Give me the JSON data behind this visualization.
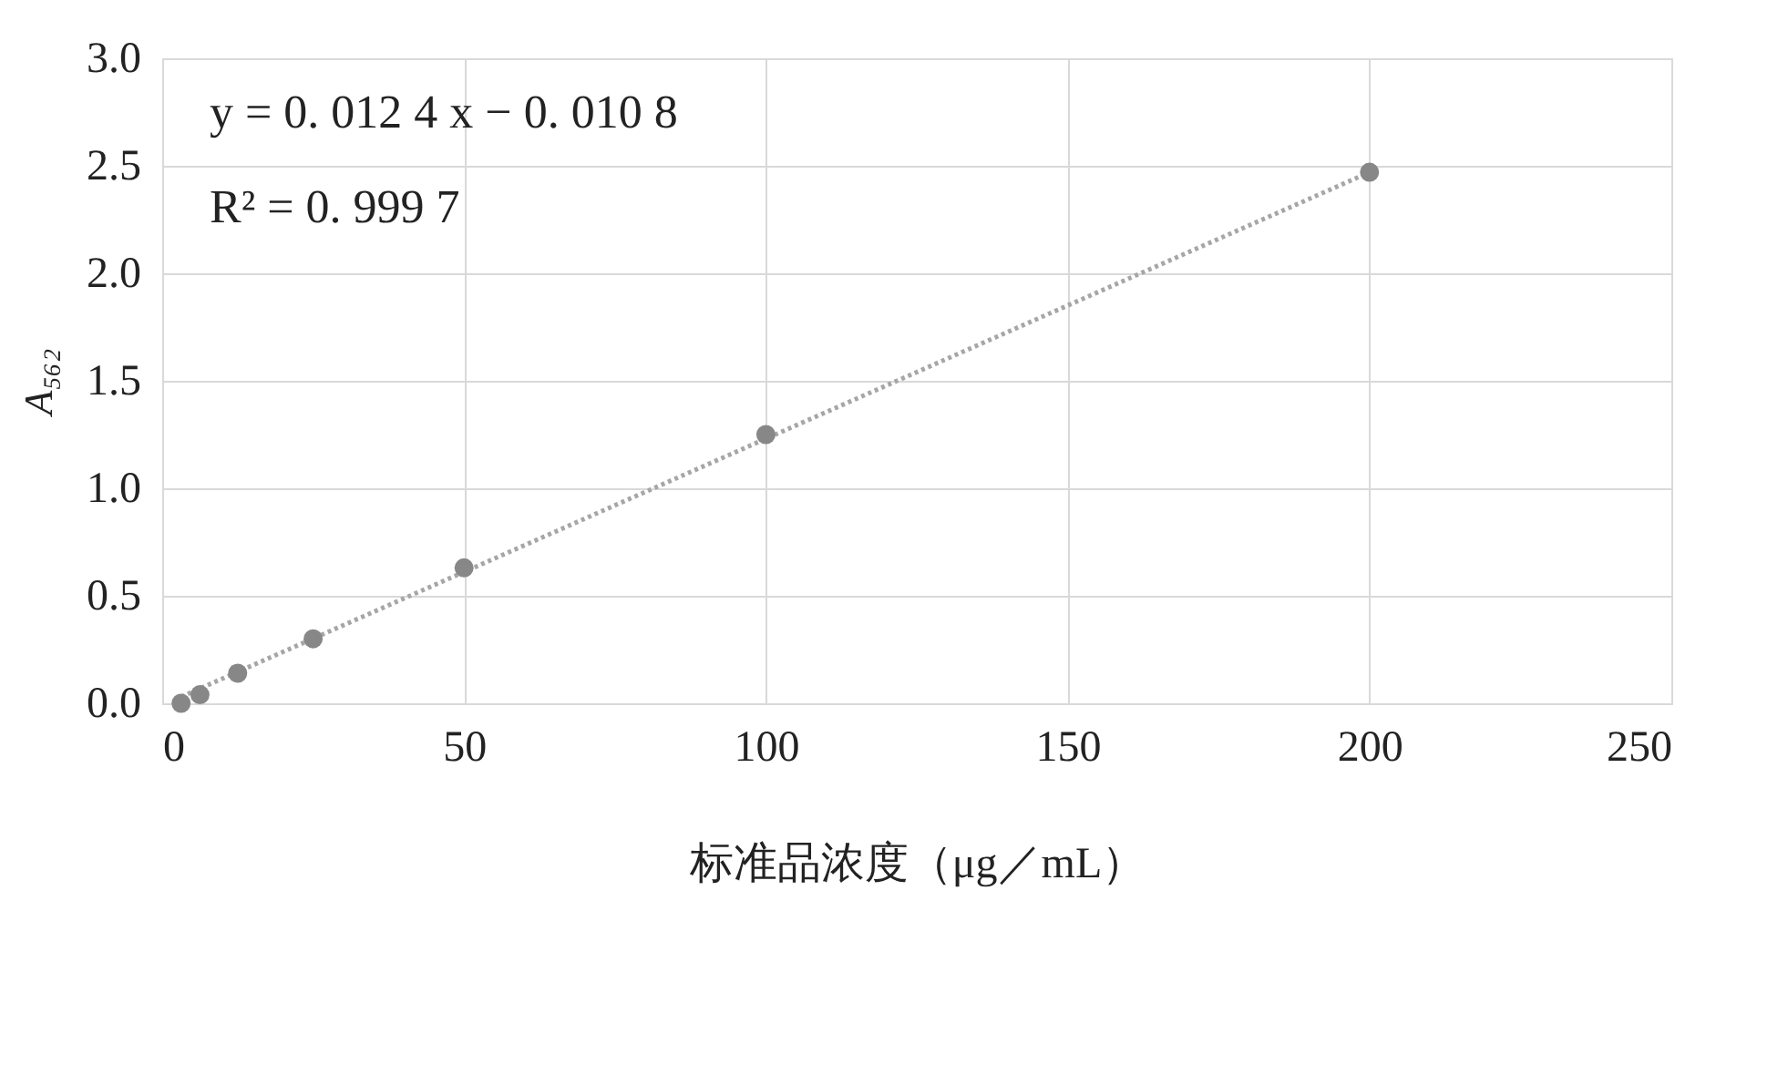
{
  "chart_data": {
    "type": "scatter",
    "xlabel": "标准品浓度（μg／mL）",
    "ylabel": "A₅₆₂",
    "annotations": [
      "y = 0. 012 4 x − 0. 010 8",
      "R² = 0. 999 7"
    ],
    "x": [
      3.125,
      6.25,
      12.5,
      25,
      50,
      100,
      200
    ],
    "series": [
      {
        "color": "#878787",
        "marker": "circle",
        "values": [
          0.0,
          0.04,
          0.14,
          0.3,
          0.63,
          1.25,
          2.47
        ]
      },
      {
        "type": "line",
        "color": "#a6a6a6",
        "x": [
          3.125,
          200
        ],
        "values": [
          0.03,
          2.47
        ],
        "line_style": "dotted",
        "marker": "none"
      }
    ],
    "xlim": [
      0,
      250
    ],
    "xticks": [
      0,
      50,
      100,
      150,
      200,
      250
    ],
    "ylim": [
      0,
      3.0
    ],
    "yticks": [
      {
        "value": 0,
        "label": "0.0"
      },
      {
        "value": 0.5,
        "label": "0.5"
      },
      {
        "value": 1.0,
        "label": "1.0"
      },
      {
        "value": 1.5,
        "label": "1.5"
      },
      {
        "value": 2.0,
        "label": "2.0"
      },
      {
        "value": 2.5,
        "label": "2.5"
      },
      {
        "value": 3.0,
        "label": "3.0"
      }
    ],
    "grid": true
  }
}
